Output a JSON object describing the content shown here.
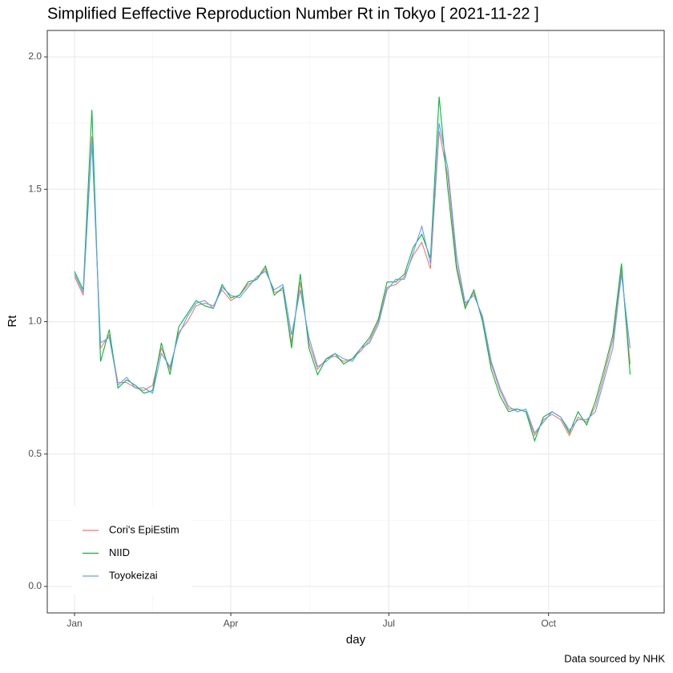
{
  "chart_data": {
    "type": "line",
    "title": "Simplified Eeffective Reproduction Number Rt in Tokyo    [ 2021-11-22 ]",
    "xlabel": "day",
    "ylabel": "Rt",
    "caption": "Data sourced by NHK",
    "x": [
      1,
      6,
      11,
      16,
      21,
      26,
      31,
      36,
      41,
      46,
      51,
      56,
      61,
      66,
      71,
      76,
      81,
      86,
      91,
      96,
      101,
      106,
      111,
      116,
      121,
      126,
      131,
      136,
      141,
      146,
      151,
      156,
      161,
      166,
      171,
      176,
      181,
      186,
      191,
      196,
      201,
      206,
      211,
      216,
      221,
      226,
      231,
      236,
      241,
      246,
      251,
      256,
      261,
      266,
      271,
      276,
      281,
      286,
      291,
      296,
      301,
      306,
      311,
      316,
      321
    ],
    "xlim": [
      -14.7,
      340.6
    ],
    "xticks": [
      {
        "value": 1,
        "label": "Jan"
      },
      {
        "value": 91,
        "label": "Apr"
      },
      {
        "value": 182,
        "label": "Jul"
      },
      {
        "value": 274,
        "label": "Oct"
      }
    ],
    "ylim": [
      -0.1,
      2.1
    ],
    "yticks": [
      {
        "value": 0,
        "label": "0.0"
      },
      0.5,
      {
        "value": 1,
        "label": "1.0"
      },
      1.5,
      {
        "value": 2,
        "label": "2.0"
      }
    ],
    "grid": true,
    "legend": "bottom-left",
    "series": [
      {
        "name": "Cori's EpiEstim",
        "color": "#F8766D",
        "values": [
          1.17,
          1.1,
          1.7,
          0.9,
          0.95,
          0.77,
          0.77,
          0.75,
          0.74,
          0.76,
          0.9,
          0.82,
          0.96,
          1.0,
          1.06,
          1.07,
          1.06,
          1.12,
          1.08,
          1.1,
          1.14,
          1.16,
          1.2,
          1.11,
          1.12,
          0.92,
          1.15,
          0.92,
          0.82,
          0.86,
          0.87,
          0.85,
          0.86,
          0.89,
          0.93,
          1.0,
          1.13,
          1.14,
          1.17,
          1.25,
          1.3,
          1.2,
          1.72,
          1.55,
          1.22,
          1.06,
          1.11,
          1.01,
          0.84,
          0.74,
          0.67,
          0.67,
          0.66,
          0.57,
          0.63,
          0.65,
          0.63,
          0.57,
          0.64,
          0.62,
          0.68,
          0.8,
          0.93,
          1.2,
          0.84
        ]
      },
      {
        "name": "NIID",
        "color": "#00BA38",
        "values": [
          1.19,
          1.12,
          1.8,
          0.85,
          0.97,
          0.75,
          0.78,
          0.76,
          0.73,
          0.74,
          0.92,
          0.8,
          0.98,
          1.03,
          1.08,
          1.06,
          1.05,
          1.14,
          1.09,
          1.1,
          1.15,
          1.16,
          1.21,
          1.1,
          1.13,
          0.9,
          1.18,
          0.9,
          0.8,
          0.86,
          0.88,
          0.84,
          0.86,
          0.9,
          0.94,
          1.01,
          1.15,
          1.15,
          1.18,
          1.28,
          1.33,
          1.24,
          1.85,
          1.5,
          1.2,
          1.05,
          1.12,
          1.0,
          0.82,
          0.72,
          0.66,
          0.67,
          0.66,
          0.55,
          0.64,
          0.66,
          0.64,
          0.58,
          0.66,
          0.61,
          0.7,
          0.82,
          0.95,
          1.22,
          0.8
        ]
      },
      {
        "name": "Toyokeizai",
        "color": "#619CFF",
        "values": [
          1.18,
          1.11,
          1.68,
          0.92,
          0.94,
          0.76,
          0.79,
          0.75,
          0.75,
          0.73,
          0.88,
          0.83,
          0.95,
          1.02,
          1.07,
          1.08,
          1.05,
          1.13,
          1.1,
          1.09,
          1.13,
          1.17,
          1.19,
          1.12,
          1.14,
          0.95,
          1.12,
          0.94,
          0.83,
          0.85,
          0.88,
          0.86,
          0.85,
          0.9,
          0.92,
          0.99,
          1.12,
          1.16,
          1.16,
          1.26,
          1.36,
          1.22,
          1.75,
          1.58,
          1.25,
          1.07,
          1.1,
          1.02,
          0.85,
          0.75,
          0.68,
          0.66,
          0.67,
          0.58,
          0.62,
          0.66,
          0.64,
          0.59,
          0.63,
          0.63,
          0.66,
          0.78,
          0.9,
          1.18,
          0.9
        ]
      }
    ]
  }
}
